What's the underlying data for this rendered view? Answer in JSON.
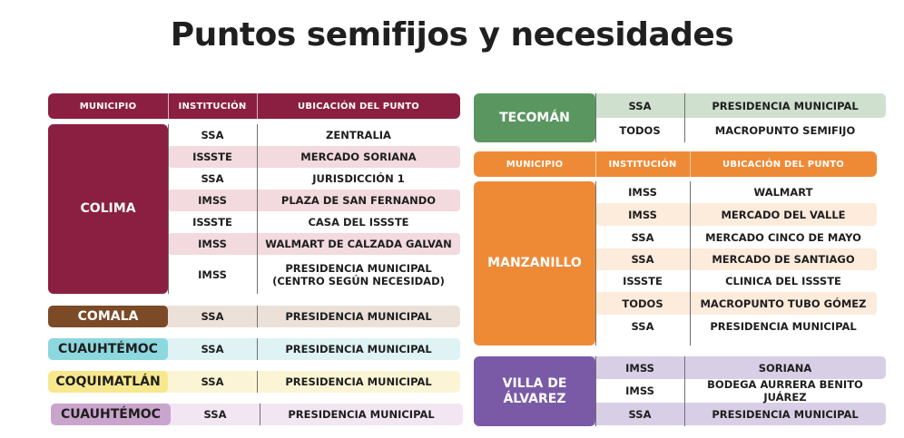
{
  "title": "Puntos semifijos y necesidades",
  "headers": {
    "municipio": "MUNICIPIO",
    "institucion": "INSTITUCIÓN",
    "ubicacion": "UBICACIÓN DEL PUNTO"
  },
  "colors": {
    "colima": "#8b1f41",
    "colima_tint": "#f2dade",
    "comala": "#7b4a26",
    "comala_tint": "#ece1d9",
    "cuauhtemoc": "#8dd7df",
    "cuauhtemoc_tint": "#dff3f5",
    "coquimatlan": "#f7e88d",
    "coquimatlan_tint": "#fbf5d6",
    "cuauhtemoc2": "#c9a4cc",
    "cuauhtemoc2_tint": "#f2e6f3",
    "tecoman": "#5a9660",
    "tecoman_tint": "#cfe0cf",
    "manzanillo": "#ee8a36",
    "manzanillo_tint": "#fdebdc",
    "villa": "#7a5aa6",
    "villa_tint": "#d8cfe6"
  },
  "colima": {
    "name": "COLIMA",
    "rows": [
      {
        "inst": "SSA",
        "loc": "ZENTRALIA"
      },
      {
        "inst": "ISSSTE",
        "loc": "MERCADO SORIANA"
      },
      {
        "inst": "SSA",
        "loc": "JURISDICCIÓN 1"
      },
      {
        "inst": "IMSS",
        "loc": "PLAZA DE SAN FERNANDO"
      },
      {
        "inst": "ISSSTE",
        "loc": "CASA DEL ISSSTE"
      },
      {
        "inst": "IMSS",
        "loc": "WALMART DE CALZADA GALVAN"
      },
      {
        "inst": "IMSS",
        "loc": "PRESIDENCIA MUNICIPAL",
        "loc2": "(CENTRO SEGÚN NECESIDAD)"
      }
    ]
  },
  "comala": {
    "name": "COMALA",
    "inst": "SSA",
    "loc": "PRESIDENCIA MUNICIPAL"
  },
  "cuauhtemoc": {
    "name": "CUAUHTÉMOC",
    "inst": "SSA",
    "loc": "PRESIDENCIA MUNICIPAL"
  },
  "coquimatlan": {
    "name": "COQUIMATLÁN",
    "inst": "SSA",
    "loc": "PRESIDENCIA MUNICIPAL"
  },
  "cuauhtemoc2": {
    "name": "CUAUHTÉMOC",
    "inst": "SSA",
    "loc": "PRESIDENCIA MUNICIPAL"
  },
  "tecoman": {
    "name": "TECOMÁN",
    "rows": [
      {
        "inst": "SSA",
        "loc": "PRESIDENCIA MUNICIPAL"
      },
      {
        "inst": "TODOS",
        "loc": "MACROPUNTO SEMIFIJO"
      }
    ]
  },
  "manzanillo": {
    "name": "MANZANILLO",
    "rows": [
      {
        "inst": "IMSS",
        "loc": "WALMART"
      },
      {
        "inst": "IMSS",
        "loc": "MERCADO DEL VALLE"
      },
      {
        "inst": "SSA",
        "loc": "MERCADO CINCO DE MAYO"
      },
      {
        "inst": "SSA",
        "loc": "MERCADO DE SANTIAGO"
      },
      {
        "inst": "ISSSTE",
        "loc": "CLINICA DEL ISSSTE"
      },
      {
        "inst": "TODOS",
        "loc": "MACROPUNTO TUBO GÓMEZ"
      },
      {
        "inst": "SSA",
        "loc": "PRESIDENCIA MUNICIPAL"
      }
    ]
  },
  "villa": {
    "name": "VILLA DE ÁLVAREZ",
    "rows": [
      {
        "inst": "IMSS",
        "loc": "SORIANA"
      },
      {
        "inst": "IMSS",
        "loc": "BODEGA AURRERA BENITO JUÁREZ"
      },
      {
        "inst": "SSA",
        "loc": "PRESIDENCIA MUNICIPAL"
      }
    ]
  }
}
